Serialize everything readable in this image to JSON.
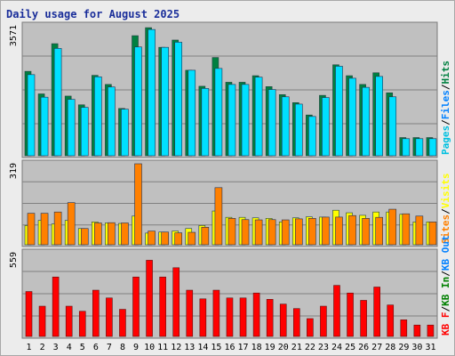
{
  "title": "Daily usage for August 2025",
  "colors": {
    "hits": "#008040",
    "files": "#00e0ff",
    "pages": "#00c0e0",
    "sites": "#ff8000",
    "visits": "#ffff00",
    "kbin": "#008000",
    "kbout": "#0080ff",
    "kbf": "#ff0000",
    "weekend_label": "#008000",
    "weekday_label": "#000000",
    "plot_bg": "#c0c0c0"
  },
  "chart_data": [
    {
      "type": "bar",
      "name": "hits-files-pages",
      "categories": [
        "1",
        "2",
        "3",
        "4",
        "5",
        "6",
        "7",
        "8",
        "9",
        "10",
        "11",
        "12",
        "13",
        "14",
        "15",
        "16",
        "17",
        "18",
        "19",
        "20",
        "21",
        "22",
        "23",
        "24",
        "25",
        "26",
        "27",
        "28",
        "29",
        "30",
        "31"
      ],
      "ymax_label": "3571",
      "ylim": [
        0,
        3571
      ],
      "legend": [
        "Pages",
        "Files",
        "Hits"
      ],
      "series": [
        {
          "name": "Hits",
          "values": [
            2320,
            1700,
            3080,
            1640,
            1400,
            2210,
            1960,
            1300,
            3300,
            3520,
            2980,
            3180,
            2350,
            1910,
            2700,
            2020,
            2020,
            2200,
            1900,
            1680,
            1460,
            1120,
            1660,
            2500,
            2200,
            1960,
            2280,
            1730,
            500,
            500,
            500
          ]
        },
        {
          "name": "Files",
          "values": [
            2230,
            1610,
            2950,
            1550,
            1330,
            2170,
            1890,
            1280,
            2990,
            3470,
            2980,
            3120,
            2350,
            1850,
            2400,
            1960,
            1960,
            2160,
            1820,
            1620,
            1420,
            1080,
            1600,
            2460,
            2130,
            1880,
            2180,
            1620,
            470,
            470,
            470
          ]
        }
      ]
    },
    {
      "type": "bar",
      "name": "sites-visits",
      "categories": [
        "1",
        "2",
        "3",
        "4",
        "5",
        "6",
        "7",
        "8",
        "9",
        "10",
        "11",
        "12",
        "13",
        "14",
        "15",
        "16",
        "17",
        "18",
        "19",
        "20",
        "21",
        "22",
        "23",
        "24",
        "25",
        "26",
        "27",
        "28",
        "29",
        "30",
        "31"
      ],
      "ymax_label": "319",
      "ylim": [
        0,
        319
      ],
      "legend": [
        "Sites",
        "Visits"
      ],
      "series": [
        {
          "name": "Visits",
          "values": [
            76,
            96,
            82,
            96,
            64,
            90,
            86,
            84,
            113,
            46,
            50,
            54,
            64,
            76,
            133,
            108,
            108,
            106,
            104,
            90,
            106,
            110,
            109,
            136,
            126,
            116,
            129,
            129,
            120,
            90,
            90
          ]
        },
        {
          "name": "Sites",
          "values": [
            124,
            124,
            129,
            166,
            64,
            86,
            87,
            86,
            319,
            54,
            50,
            47,
            49,
            69,
            225,
            104,
            99,
            98,
            99,
            98,
            102,
            104,
            109,
            109,
            115,
            104,
            108,
            140,
            122,
            113,
            90
          ]
        }
      ]
    },
    {
      "type": "bar",
      "name": "kbytes",
      "categories": [
        "1",
        "2",
        "3",
        "4",
        "5",
        "6",
        "7",
        "8",
        "9",
        "10",
        "11",
        "12",
        "13",
        "14",
        "15",
        "16",
        "17",
        "18",
        "19",
        "20",
        "21",
        "22",
        "23",
        "24",
        "25",
        "26",
        "27",
        "28",
        "29",
        "30",
        "31"
      ],
      "ymax_label": "559",
      "ylim": [
        0,
        559
      ],
      "legend": [
        "KB F",
        "KB In",
        "KB Out"
      ],
      "series": [
        {
          "name": "KB F",
          "values": [
            300,
            202,
            397,
            202,
            168,
            309,
            257,
            181,
            397,
            509,
            397,
            459,
            309,
            251,
            309,
            257,
            257,
            290,
            248,
            216,
            186,
            119,
            202,
            341,
            290,
            241,
            330,
            210,
            111,
            76,
            76
          ]
        }
      ]
    }
  ],
  "x_labels_weekend": [
    "2",
    "3",
    "9",
    "10",
    "16",
    "17",
    "23",
    "24",
    "30",
    "31"
  ]
}
